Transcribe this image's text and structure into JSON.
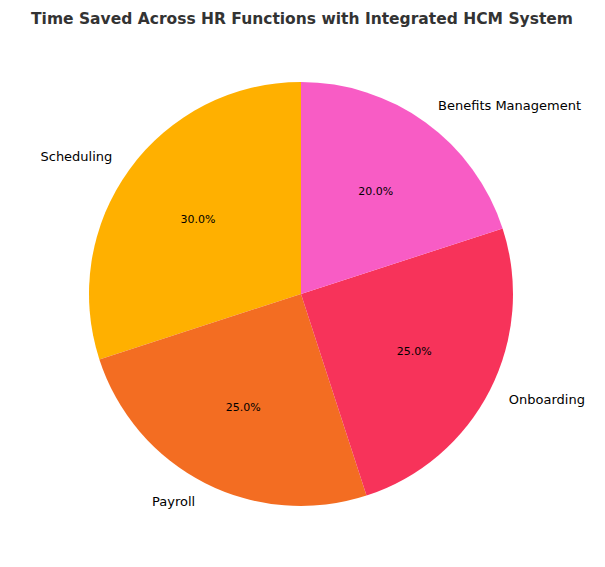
{
  "chart_data": {
    "type": "pie",
    "title": "Time Saved Across HR Functions with Integrated HCM System",
    "categories": [
      "Scheduling",
      "Payroll",
      "Onboarding",
      "Benefits Management"
    ],
    "values": [
      30,
      25,
      25,
      20
    ],
    "value_labels": [
      "30.0%",
      "25.0%",
      "25.0%",
      "20.0%"
    ],
    "colors": [
      "#ffb000",
      "#f36d22",
      "#f7335a",
      "#f85cc5"
    ],
    "data_labels": true
  }
}
